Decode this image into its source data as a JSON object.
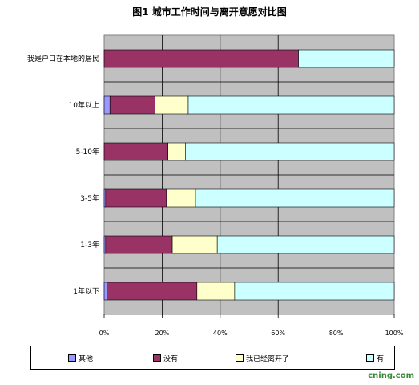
{
  "chart_data": {
    "type": "bar",
    "orientation": "horizontal",
    "stacked": "percent",
    "title": "图1  城市工作时间与离开意愿对比图",
    "categories": [
      "我是户口在本地的居民",
      "10年以上",
      "5-10年",
      "3-5年",
      "1-3年",
      "1年以下"
    ],
    "series": [
      {
        "name": "其他",
        "color": "#9999ff",
        "values": [
          0,
          2,
          0,
          0.5,
          0.5,
          1
        ]
      },
      {
        "name": "没有",
        "color": "#993366",
        "values": [
          67,
          15.5,
          22,
          21,
          23,
          31
        ]
      },
      {
        "name": "我已经离开了",
        "color": "#ffffcc",
        "values": [
          0,
          11.5,
          6,
          10,
          15.5,
          13
        ]
      },
      {
        "name": "有",
        "color": "#ccffff",
        "values": [
          33,
          71,
          72,
          68.5,
          61,
          55
        ]
      }
    ],
    "xlim": [
      0,
      100
    ],
    "xticks": [
      "0%",
      "20%",
      "40%",
      "60%",
      "80%",
      "100%"
    ],
    "plot_background": "#c0c0c0",
    "grid": true,
    "legend_position": "bottom"
  },
  "watermark": "cning.com"
}
